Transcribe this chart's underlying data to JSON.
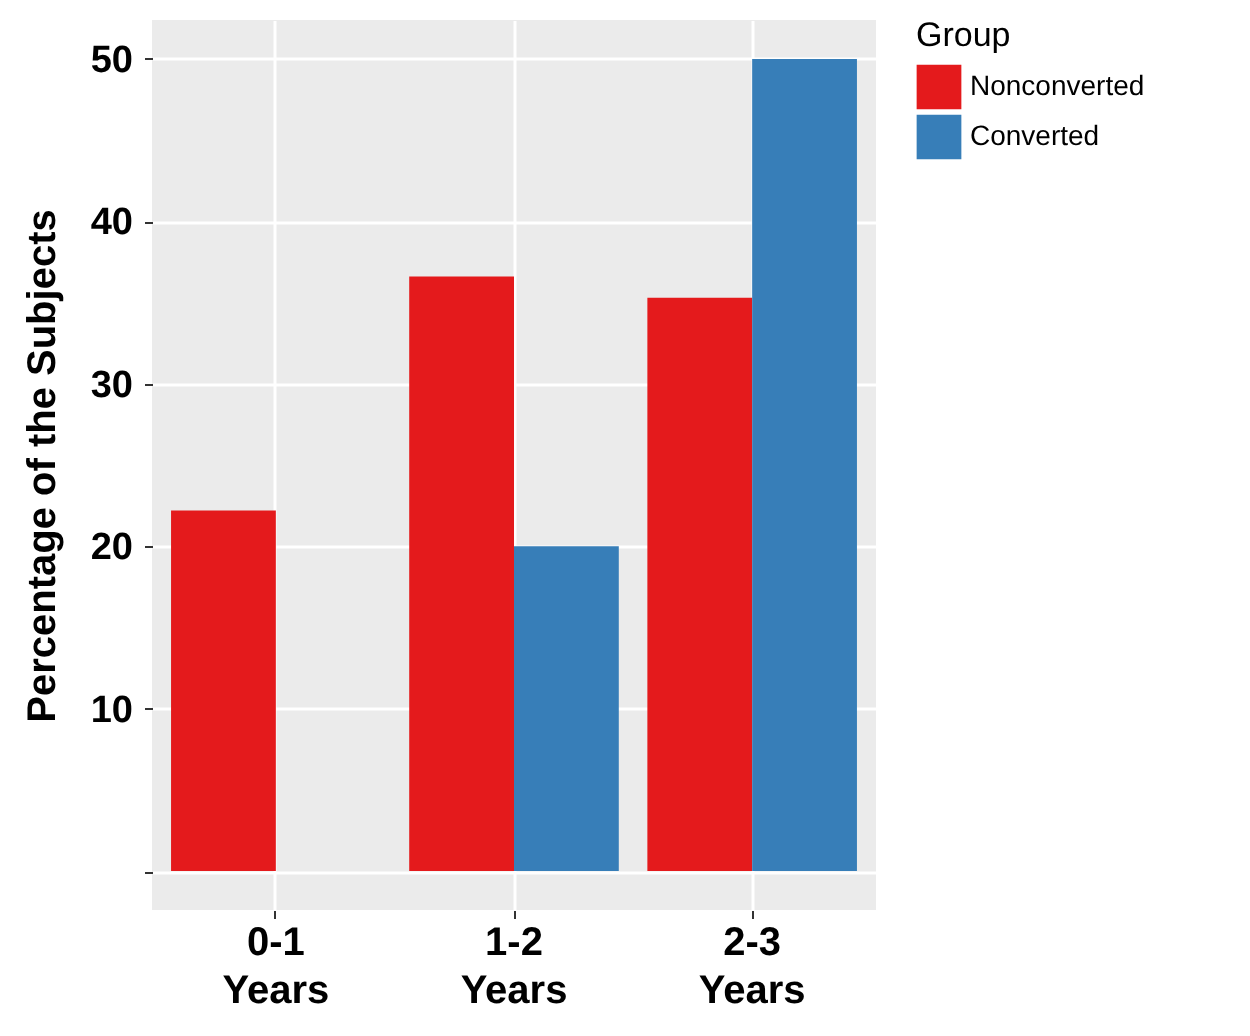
{
  "chart_data": {
    "type": "bar",
    "ylabel": "Percentage of the Subjects",
    "legend_title": "Group",
    "categories": [
      "0-1 Years",
      "1-2 Years",
      "2-3 Years"
    ],
    "series": [
      {
        "name": "Nonconverted",
        "color": "#e41a1c",
        "values": [
          22.2,
          36.6,
          35.3
        ]
      },
      {
        "name": "Converted",
        "color": "#377eb8",
        "values": [
          0,
          20.0,
          50
        ]
      }
    ],
    "ylim": [
      -2.4,
      52.4
    ],
    "yticks": [
      {
        "value": 0,
        "label": null
      },
      10,
      20,
      30,
      40,
      50
    ],
    "grid": true,
    "legend": "right"
  }
}
